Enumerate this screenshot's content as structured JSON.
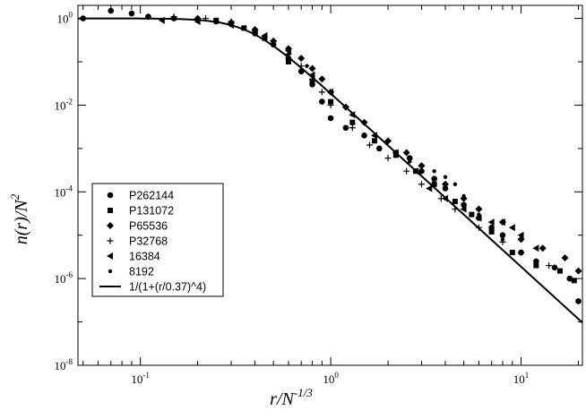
{
  "chart_data": {
    "type": "scatter",
    "xscale": "log",
    "yscale": "log",
    "xlim": [
      0.047,
      21
    ],
    "ylim": [
      1e-08,
      2
    ],
    "x_ticks": [
      {
        "value": 0.1,
        "base": "10",
        "exp": "-1"
      },
      {
        "value": 1,
        "base": "10",
        "exp": "0"
      },
      {
        "value": 10,
        "base": "10",
        "exp": "1"
      }
    ],
    "y_ticks": [
      {
        "value": 1,
        "base": "10",
        "exp": "0"
      },
      {
        "value": 0.01,
        "base": "10",
        "exp": "-2"
      },
      {
        "value": 0.0001,
        "base": "10",
        "exp": "-4"
      },
      {
        "value": 1e-06,
        "base": "10",
        "exp": "-6"
      },
      {
        "value": 1e-08,
        "base": "10",
        "exp": "-8"
      }
    ],
    "xlabel": {
      "main": "r/N",
      "sup": "-1/3"
    },
    "ylabel": {
      "main": "n(r)/N",
      "sup": "2"
    },
    "legend_position": "left",
    "series": [
      {
        "name": "P262144",
        "marker": "circle",
        "points": [
          [
            0.05,
            1.0
          ],
          [
            0.07,
            1.5
          ],
          [
            0.09,
            1.3
          ],
          [
            0.11,
            1.1
          ],
          [
            0.15,
            1.0
          ],
          [
            0.2,
            0.95
          ],
          [
            0.25,
            0.85
          ],
          [
            0.3,
            0.75
          ],
          [
            0.4,
            0.45
          ],
          [
            0.5,
            0.25
          ],
          [
            0.6,
            0.12
          ],
          [
            0.7,
            0.06
          ],
          [
            0.8,
            0.03
          ],
          [
            0.9,
            0.012
          ],
          [
            1.0,
            0.005
          ],
          [
            1.2,
            0.003
          ],
          [
            1.5,
            0.002
          ],
          [
            1.8,
            0.001
          ],
          [
            2.2,
            0.0008
          ],
          [
            2.6,
            0.0006
          ],
          [
            3.0,
            0.0003
          ],
          [
            3.5,
            0.0002
          ],
          [
            4.0,
            0.00012
          ],
          [
            5.0,
            5e-05
          ],
          [
            6.0,
            2.5e-05
          ],
          [
            7.0,
            1.5e-05
          ],
          [
            8.0,
            1e-05
          ],
          [
            10.0,
            4e-06
          ],
          [
            12.0,
            2.5e-06
          ],
          [
            15.0,
            1.8e-06
          ],
          [
            18.0,
            1e-06
          ],
          [
            20.0,
            3e-07
          ]
        ]
      },
      {
        "name": "P131072",
        "marker": "square",
        "points": [
          [
            0.25,
            0.9
          ],
          [
            0.35,
            0.6
          ],
          [
            0.45,
            0.35
          ],
          [
            0.6,
            0.1
          ],
          [
            0.8,
            0.035
          ],
          [
            1.0,
            0.012
          ],
          [
            1.3,
            0.004
          ],
          [
            1.7,
            0.0015
          ],
          [
            2.2,
            0.0007
          ],
          [
            2.8,
            0.0003
          ],
          [
            3.5,
            0.00015
          ],
          [
            4.5,
            6e-05
          ],
          [
            5.5,
            3e-05
          ],
          [
            7.0,
            1.2e-05
          ],
          [
            9.0,
            4e-06
          ],
          [
            12.0,
            2e-06
          ],
          [
            16.0,
            1.5e-06
          ],
          [
            19.0,
            9e-07
          ]
        ]
      },
      {
        "name": "P65536",
        "marker": "diamond",
        "points": [
          [
            0.2,
            1.0
          ],
          [
            0.3,
            0.8
          ],
          [
            0.4,
            0.55
          ],
          [
            0.5,
            0.3
          ],
          [
            0.6,
            0.2
          ],
          [
            0.7,
            0.12
          ],
          [
            0.8,
            0.07
          ],
          [
            0.9,
            0.04
          ],
          [
            1.0,
            0.02
          ],
          [
            1.2,
            0.009
          ],
          [
            1.5,
            0.004
          ],
          [
            2.0,
            0.0015
          ],
          [
            2.5,
            0.0008
          ],
          [
            3.0,
            0.0004
          ],
          [
            4.0,
            0.00015
          ],
          [
            5.0,
            7e-05
          ],
          [
            6.0,
            4e-05
          ],
          [
            8.0,
            2e-05
          ],
          [
            10.0,
            8e-06
          ],
          [
            13.0,
            5e-06
          ],
          [
            17.0,
            3e-06
          ],
          [
            20.0,
            1.5e-06
          ]
        ]
      },
      {
        "name": "P32768",
        "marker": "plus",
        "points": [
          [
            0.15,
            1.1
          ],
          [
            0.22,
            1.0
          ],
          [
            0.3,
            0.85
          ],
          [
            0.4,
            0.5
          ],
          [
            0.5,
            0.3
          ],
          [
            0.6,
            0.15
          ],
          [
            0.7,
            0.08
          ],
          [
            0.8,
            0.04
          ],
          [
            0.9,
            0.02
          ],
          [
            1.0,
            0.01
          ],
          [
            1.3,
            0.003
          ],
          [
            1.6,
            0.0012
          ],
          [
            2.0,
            0.0006
          ],
          [
            2.5,
            0.0003
          ],
          [
            3.0,
            0.00015
          ],
          [
            3.8,
            7e-05
          ],
          [
            4.5,
            4e-05
          ],
          [
            6.0,
            1.5e-05
          ],
          [
            8.0,
            7e-06
          ],
          [
            10.0,
            4e-06
          ],
          [
            14.0,
            2e-06
          ]
        ]
      },
      {
        "name": "16384",
        "marker": "triangle-left",
        "points": [
          [
            0.13,
            0.9
          ],
          [
            0.2,
            0.85
          ],
          [
            0.3,
            0.7
          ],
          [
            0.45,
            0.4
          ],
          [
            0.6,
            0.18
          ],
          [
            0.8,
            0.05
          ],
          [
            1.0,
            0.02
          ],
          [
            1.3,
            0.006
          ],
          [
            1.7,
            0.002
          ],
          [
            2.2,
            0.0008
          ],
          [
            2.8,
            0.0003
          ],
          [
            3.3,
            0.00012
          ],
          [
            4.0,
            7e-05
          ],
          [
            5.0,
            4e-05
          ],
          [
            6.0,
            2.5e-05
          ],
          [
            7.0,
            2e-05
          ],
          [
            8.0,
            2e-05
          ],
          [
            9.0,
            1.5e-05
          ],
          [
            10.0,
            1e-05
          ],
          [
            12.0,
            5e-06
          ]
        ]
      },
      {
        "name": "8192",
        "marker": "small-circle",
        "points": [
          [
            0.2,
            0.9
          ],
          [
            0.3,
            0.7
          ],
          [
            0.4,
            0.45
          ],
          [
            0.5,
            0.28
          ],
          [
            0.6,
            0.15
          ],
          [
            0.75,
            0.08
          ],
          [
            0.9,
            0.04
          ],
          [
            1.0,
            0.02
          ],
          [
            1.3,
            0.006
          ],
          [
            1.7,
            0.002
          ],
          [
            2.2,
            0.0008
          ],
          [
            2.6,
            0.0005
          ],
          [
            3.0,
            0.0004
          ],
          [
            3.5,
            0.0003
          ],
          [
            4.0,
            0.00022
          ],
          [
            4.5,
            0.00015
          ],
          [
            5.0,
            8e-05
          ],
          [
            6.0,
            3e-05
          ],
          [
            7.0,
            1.5e-05
          ],
          [
            8.0,
            8e-06
          ]
        ]
      },
      {
        "name": "1/(1+(r/0.37)^4)",
        "marker": "line",
        "r0": 0.37,
        "power": 4
      }
    ]
  }
}
